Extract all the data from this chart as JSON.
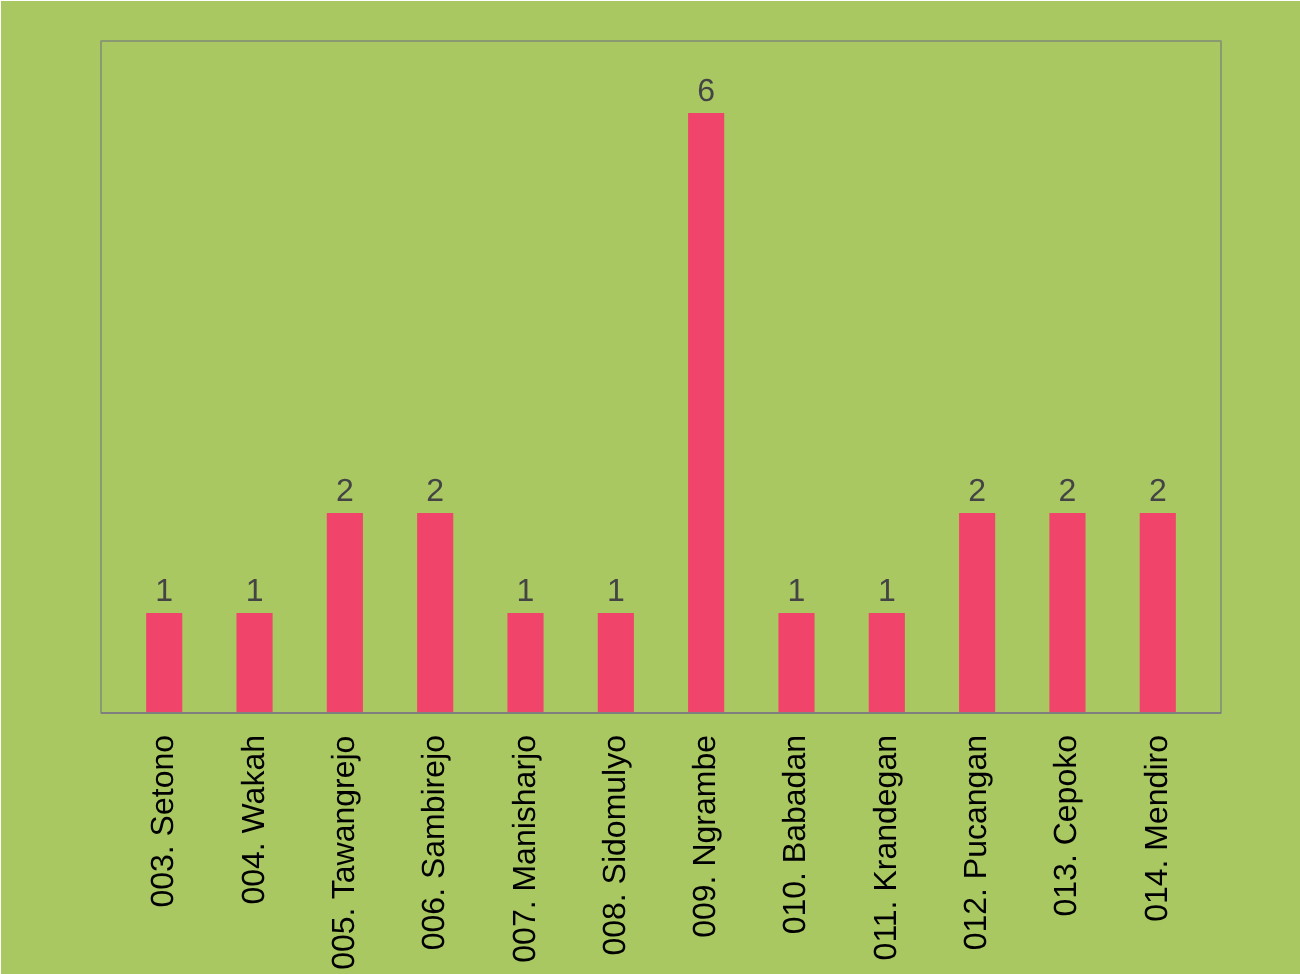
{
  "chart_data": {
    "type": "bar",
    "categories": [
      "003. Setono",
      "004. Wakah",
      "005. Tawangrejo",
      "006. Sambirejo",
      "007. Manisharjo",
      "008. Sidomulyo",
      "009. Ngrambe",
      "010. Babadan",
      "011. Krandegan",
      "012. Pucangan",
      "013. Cepoko",
      "014. Mendiro"
    ],
    "values": [
      1,
      1,
      2,
      2,
      1,
      1,
      6,
      1,
      1,
      2,
      2,
      2
    ],
    "color": "#f0446a",
    "data_labels": true,
    "grid": false
  }
}
